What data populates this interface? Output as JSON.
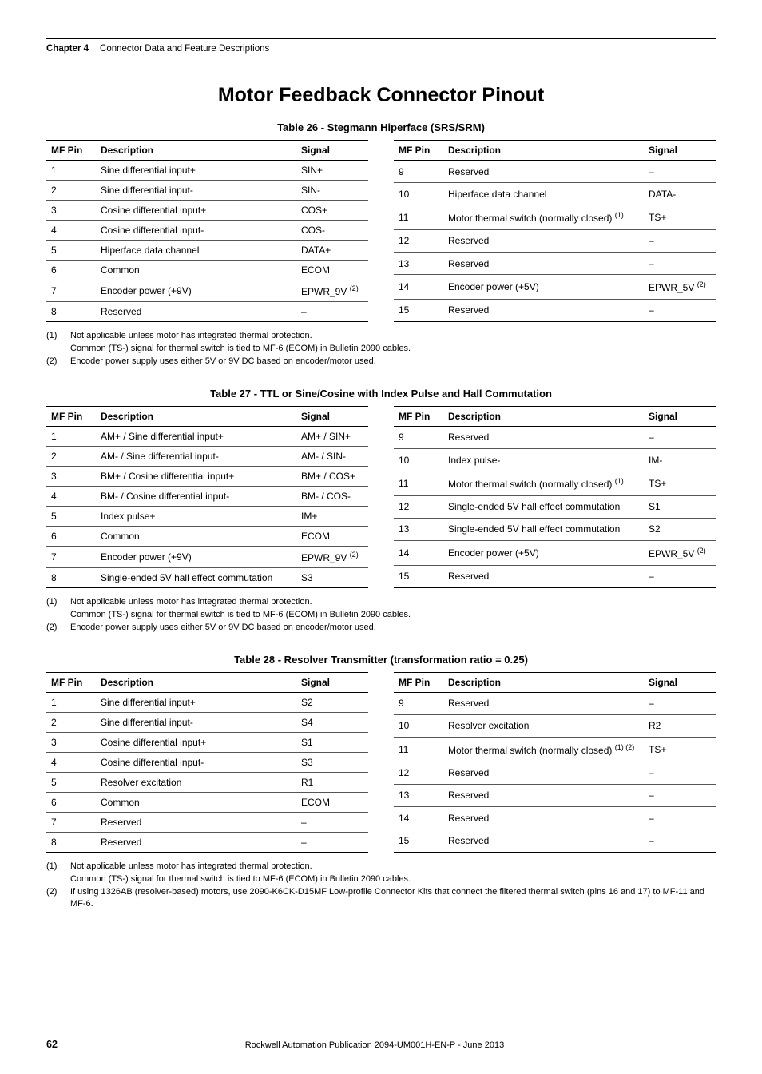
{
  "header": {
    "chapter": "Chapter 4",
    "title": "Connector Data and Feature Descriptions"
  },
  "h1": "Motor Feedback Connector Pinout",
  "cols": {
    "pin": "MF Pin",
    "desc": "Description",
    "sig": "Signal"
  },
  "t26": {
    "caption": "Table 26 - Stegmann Hiperface (SRS/SRM)",
    "left": [
      {
        "p": "1",
        "d": "Sine differential input+",
        "s": "SIN+"
      },
      {
        "p": "2",
        "d": "Sine differential input-",
        "s": "SIN-"
      },
      {
        "p": "3",
        "d": "Cosine differential input+",
        "s": "COS+"
      },
      {
        "p": "4",
        "d": "Cosine differential input-",
        "s": "COS-"
      },
      {
        "p": "5",
        "d": "Hiperface data channel",
        "s": "DATA+"
      },
      {
        "p": "6",
        "d": "Common",
        "s": "ECOM"
      },
      {
        "p": "7",
        "d": "Encoder power (+9V)",
        "s": "EPWR_9V",
        "sfn": "(2)"
      },
      {
        "p": "8",
        "d": "Reserved",
        "s": "–"
      }
    ],
    "right": [
      {
        "p": "9",
        "d": "Reserved",
        "s": "–"
      },
      {
        "p": "10",
        "d": "Hiperface data channel",
        "s": "DATA-"
      },
      {
        "p": "11",
        "d": "Motor thermal switch (normally closed)",
        "dfn": "(1)",
        "s": "TS+"
      },
      {
        "p": "12",
        "d": "Reserved",
        "s": "–"
      },
      {
        "p": "13",
        "d": "Reserved",
        "s": "–"
      },
      {
        "p": "14",
        "d": "Encoder power (+5V)",
        "s": "EPWR_5V",
        "sfn": "(2)"
      },
      {
        "p": "15",
        "d": "Reserved",
        "s": "–"
      }
    ],
    "notes": [
      {
        "n": "(1)",
        "t": "Not applicable unless motor has integrated thermal protection.",
        "c": "Common (TS-) signal for thermal switch is tied to MF-6 (ECOM) in Bulletin 2090 cables."
      },
      {
        "n": "(2)",
        "t": "Encoder power supply uses either 5V or 9V DC based on encoder/motor used."
      }
    ]
  },
  "t27": {
    "caption": "Table 27 - TTL or Sine/Cosine with Index Pulse and Hall Commutation",
    "left": [
      {
        "p": "1",
        "d": "AM+ / Sine differential input+",
        "s": "AM+ / SIN+"
      },
      {
        "p": "2",
        "d": "AM- / Sine differential input-",
        "s": "AM- / SIN-"
      },
      {
        "p": "3",
        "d": "BM+ / Cosine differential input+",
        "s": "BM+ / COS+"
      },
      {
        "p": "4",
        "d": "BM- / Cosine differential input-",
        "s": "BM- / COS-"
      },
      {
        "p": "5",
        "d": "Index pulse+",
        "s": "IM+"
      },
      {
        "p": "6",
        "d": "Common",
        "s": "ECOM"
      },
      {
        "p": "7",
        "d": "Encoder power (+9V)",
        "s": "EPWR_9V",
        "sfn": "(2)"
      },
      {
        "p": "8",
        "d": "Single-ended 5V hall effect commutation",
        "s": "S3"
      }
    ],
    "right": [
      {
        "p": "9",
        "d": "Reserved",
        "s": "–"
      },
      {
        "p": "10",
        "d": "Index pulse-",
        "s": "IM-"
      },
      {
        "p": "11",
        "d": "Motor thermal switch (normally closed)",
        "dfn": "(1)",
        "s": "TS+"
      },
      {
        "p": "12",
        "d": "Single-ended 5V hall effect commutation",
        "s": "S1"
      },
      {
        "p": "13",
        "d": "Single-ended 5V hall effect commutation",
        "s": "S2"
      },
      {
        "p": "14",
        "d": "Encoder power (+5V)",
        "s": "EPWR_5V",
        "sfn": "(2)"
      },
      {
        "p": "15",
        "d": "Reserved",
        "s": "–"
      }
    ],
    "notes": [
      {
        "n": "(1)",
        "t": "Not applicable unless motor has integrated thermal protection.",
        "c": "Common (TS-) signal for thermal switch is tied to MF-6 (ECOM) in Bulletin 2090 cables."
      },
      {
        "n": "(2)",
        "t": "Encoder power supply uses either 5V or 9V DC based on encoder/motor used."
      }
    ]
  },
  "t28": {
    "caption": "Table 28 - Resolver Transmitter (transformation ratio = 0.25)",
    "left": [
      {
        "p": "1",
        "d": "Sine differential input+",
        "s": "S2"
      },
      {
        "p": "2",
        "d": "Sine differential input-",
        "s": "S4"
      },
      {
        "p": "3",
        "d": "Cosine differential input+",
        "s": "S1"
      },
      {
        "p": "4",
        "d": "Cosine differential input-",
        "s": "S3"
      },
      {
        "p": "5",
        "d": "Resolver excitation",
        "s": "R1"
      },
      {
        "p": "6",
        "d": "Common",
        "s": "ECOM"
      },
      {
        "p": "7",
        "d": "Reserved",
        "s": "–"
      },
      {
        "p": "8",
        "d": "Reserved",
        "s": "–"
      }
    ],
    "right": [
      {
        "p": "9",
        "d": "Reserved",
        "s": "–"
      },
      {
        "p": "10",
        "d": "Resolver excitation",
        "s": "R2"
      },
      {
        "p": "11",
        "d": "Motor thermal switch (normally closed)",
        "dfn": "(1) (2)",
        "s": "TS+"
      },
      {
        "p": "12",
        "d": "Reserved",
        "s": "–"
      },
      {
        "p": "13",
        "d": "Reserved",
        "s": "–"
      },
      {
        "p": "14",
        "d": "Reserved",
        "s": "–"
      },
      {
        "p": "15",
        "d": "Reserved",
        "s": "–"
      }
    ],
    "notes": [
      {
        "n": "(1)",
        "t": "Not applicable unless motor has integrated thermal protection.",
        "c": "Common (TS-) signal for thermal switch is tied to MF-6 (ECOM) in Bulletin 2090 cables."
      },
      {
        "n": "(2)",
        "t": "If using 1326AB (resolver-based) motors, use 2090-K6CK-D15MF Low-profile Connector Kits that connect the filtered thermal switch (pins 16 and 17) to MF-11 and MF-6."
      }
    ]
  },
  "footer": {
    "page": "62",
    "pub": "Rockwell Automation Publication 2094-UM001H-EN-P - June 2013"
  }
}
